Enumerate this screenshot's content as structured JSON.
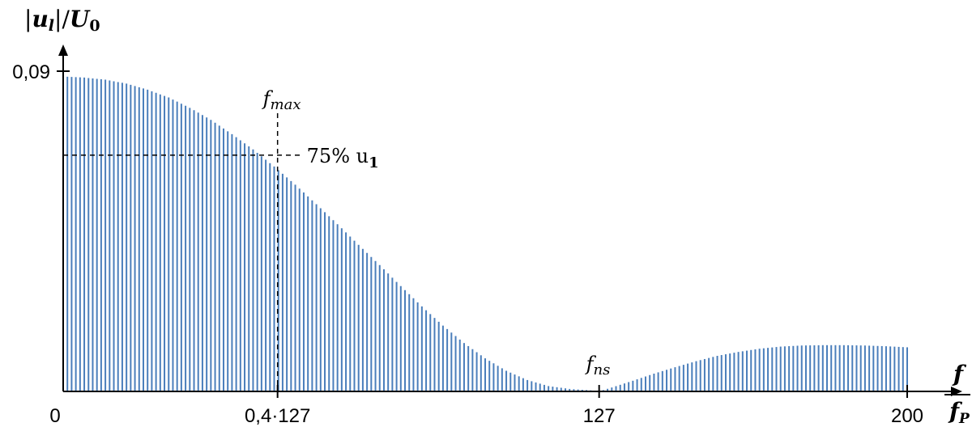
{
  "chart_data": {
    "type": "bar",
    "ylabel": "|u_l|/U_0",
    "ylabel_parts": {
      "left": "|",
      "u": "u",
      "l": "l",
      "mid": "|/",
      "U": "U",
      "zero": "0"
    },
    "xlabel_parts": {
      "num": "f",
      "den": "f",
      "den_sub": "P"
    },
    "xlim": [
      0,
      200
    ],
    "ylim": [
      0,
      0.09
    ],
    "x_ticks": [
      {
        "value": 0,
        "label": "0"
      },
      {
        "value": 50.8,
        "label": "0,4·127"
      },
      {
        "value": 127,
        "label": "127"
      },
      {
        "value": 200,
        "label": "200"
      }
    ],
    "y_ticks": [
      {
        "value": 0.09,
        "label": "0,09"
      }
    ],
    "bar_color": "#4a7ebb",
    "bar_step": 1,
    "envelope": [
      [
        0,
        0.0885
      ],
      [
        5,
        0.0882
      ],
      [
        10,
        0.0876
      ],
      [
        15,
        0.0865
      ],
      [
        20,
        0.0848
      ],
      [
        25,
        0.0826
      ],
      [
        30,
        0.0797
      ],
      [
        35,
        0.0763
      ],
      [
        40,
        0.0723
      ],
      [
        45,
        0.068
      ],
      [
        50,
        0.0632
      ],
      [
        55,
        0.0581
      ],
      [
        60,
        0.0526
      ],
      [
        65,
        0.047
      ],
      [
        70,
        0.0412
      ],
      [
        75,
        0.0355
      ],
      [
        80,
        0.0296
      ],
      [
        85,
        0.0239
      ],
      [
        90,
        0.0185
      ],
      [
        95,
        0.0136
      ],
      [
        100,
        0.0093
      ],
      [
        105,
        0.0058
      ],
      [
        110,
        0.0032
      ],
      [
        115,
        0.0015
      ],
      [
        120,
        0.0007
      ],
      [
        125,
        0.0003
      ],
      [
        127,
        0.0
      ],
      [
        130,
        0.0011
      ],
      [
        135,
        0.003
      ],
      [
        140,
        0.005
      ],
      [
        145,
        0.0068
      ],
      [
        150,
        0.0085
      ],
      [
        155,
        0.01
      ],
      [
        160,
        0.0111
      ],
      [
        165,
        0.012
      ],
      [
        170,
        0.0126
      ],
      [
        175,
        0.0129
      ],
      [
        180,
        0.013
      ],
      [
        185,
        0.013
      ],
      [
        190,
        0.0129
      ],
      [
        195,
        0.0127
      ],
      [
        200,
        0.0124
      ]
    ],
    "annotations": {
      "fmax": {
        "x": 50.8,
        "label": "f",
        "sub": "max"
      },
      "level": {
        "y": 0.0664,
        "label": "75% u",
        "sub": "1"
      },
      "fns": {
        "x": 127,
        "label": "f",
        "sub": "ns"
      }
    }
  }
}
